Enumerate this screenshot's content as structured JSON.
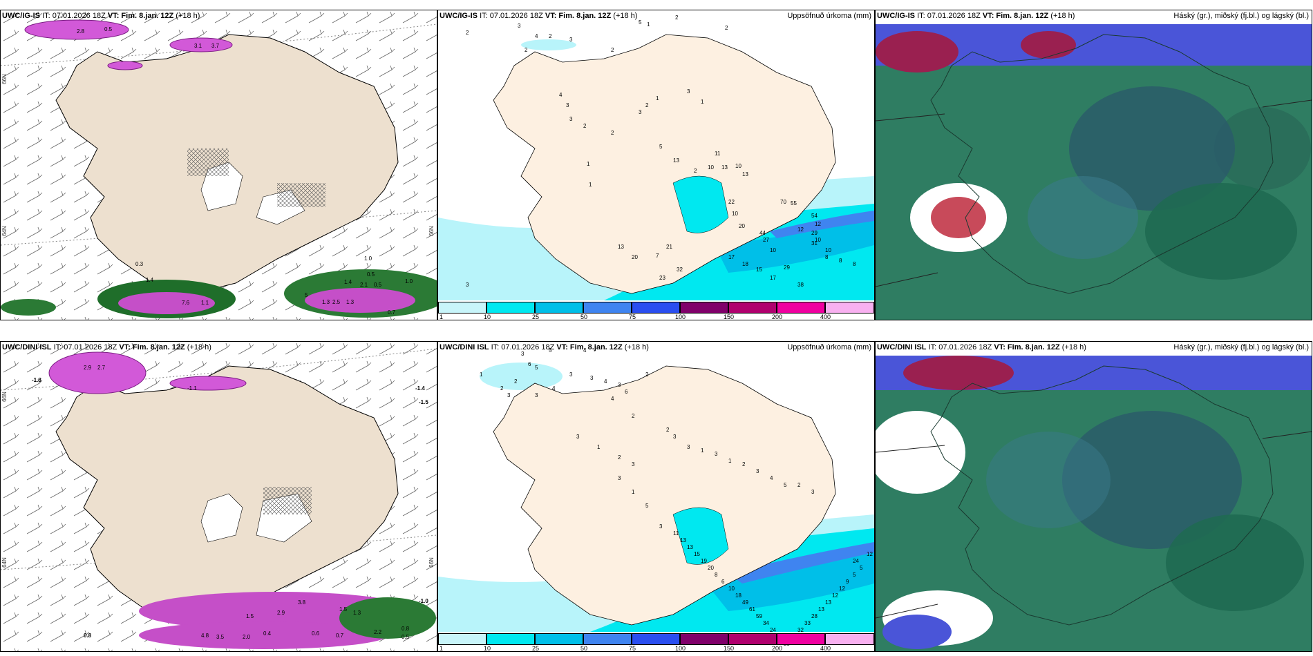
{
  "panels": {
    "top_left": {
      "model": "UWC/IG-IS",
      "it": "IT: 07.01.2026 18Z",
      "vt_label": "VT:",
      "vt": "Fim. 8.jan. 12Z",
      "lead": "(+18 h)",
      "right_title": ""
    },
    "top_mid": {
      "model": "UWC/IG-IS",
      "it": "IT: 07.01.2026 18Z",
      "vt_label": "VT:",
      "vt": "Fim. 8.jan. 12Z",
      "lead": "(+18 h)",
      "right_title": "Uppsöfnuð úrkoma (mm)"
    },
    "top_right": {
      "model": "UWC/IG-IS",
      "it": "IT: 07.01.2026 18Z",
      "vt_label": "VT:",
      "vt": "Fim. 8.jan. 12Z",
      "lead": "(+18 h)",
      "right_title": "Háský (gr.), miðský (fj.bl.) og lágský (bl.)"
    },
    "bot_left": {
      "model": "UWC/DINI ISL",
      "it": "IT: 07.01.2026 18Z",
      "vt_label": "VT:",
      "vt": "Fim. 8.jan. 12Z",
      "lead": "(+18 h)",
      "right_title": ""
    },
    "bot_mid": {
      "model": "UWC/DINI ISL",
      "it": "IT: 07.01.2026 18Z",
      "vt_label": "VT:",
      "vt": "Fim. 8.jan. 12Z",
      "lead": "(+18 h)",
      "right_title": "Uppsöfnuð úrkoma (mm)"
    },
    "bot_right": {
      "model": "UWC/DINI ISL",
      "it": "IT: 07.01.2026 18Z",
      "vt_label": "VT:",
      "vt": "Fim. 8.jan. 12Z",
      "lead": "(+18 h)",
      "right_title": "Háský (gr.), miðský (fj.bl.) og lágský (bl.)"
    }
  },
  "lat_labels": {
    "a": "66N",
    "b": "64N"
  },
  "precip_legend": {
    "labels": [
      "1",
      "10",
      "25",
      "50",
      "75",
      "100",
      "150",
      "200",
      "400"
    ],
    "colors": [
      "#c8f5fa",
      "#00e8f0",
      "#00bfe8",
      "#3f84f0",
      "#2a4ef0",
      "#2020b0",
      "#80006a",
      "#b0006e",
      "#f000a0",
      "#f8b0f0"
    ]
  },
  "precip_values_top": [
    "2",
    "3",
    "4",
    "2",
    "3",
    "5",
    "2",
    "1",
    "2",
    "2",
    "2",
    "4",
    "3",
    "3",
    "2",
    "1",
    "1",
    "1",
    "3",
    "1",
    "2",
    "3",
    "2",
    "5",
    "13",
    "2",
    "10",
    "13",
    "10",
    "11",
    "13",
    "22",
    "10",
    "20",
    "70",
    "55",
    "54",
    "29",
    "31",
    "44",
    "27",
    "10",
    "12",
    "10",
    "10",
    "8",
    "8",
    "8",
    "12",
    "13",
    "20",
    "7",
    "21",
    "23",
    "32",
    "17",
    "18",
    "15",
    "17",
    "29",
    "38",
    "3",
    "2"
  ],
  "precip_values_bot": [
    "3",
    "6",
    "5",
    "5",
    "4",
    "1",
    "2",
    "2",
    "3",
    "3",
    "4",
    "3",
    "3",
    "4",
    "3",
    "6",
    "4",
    "2",
    "2",
    "3",
    "1",
    "2",
    "3",
    "2",
    "3",
    "3",
    "1",
    "3",
    "1",
    "2",
    "3",
    "4",
    "5",
    "2",
    "3",
    "3",
    "1",
    "5",
    "3",
    "11",
    "13",
    "13",
    "15",
    "19",
    "20",
    "8",
    "6",
    "10",
    "18",
    "49",
    "61",
    "59",
    "34",
    "24",
    "24",
    "23",
    "29",
    "32",
    "33",
    "28",
    "13",
    "13",
    "12",
    "12",
    "9",
    "5",
    "5",
    "24",
    "12"
  ],
  "overlay_values_top_left": [
    "2.8",
    "0.5",
    "3.1",
    "3.7",
    "0.3",
    "1.4",
    "0.5",
    "7.6",
    "1.1",
    "5",
    "1.4",
    "2.1",
    "0.5",
    "1.0",
    "2.5",
    "1.3",
    "1.3",
    "0.7",
    "1.0"
  ],
  "overlay_values_bot_left": [
    "-1.8",
    "-1.1",
    "-1.4",
    "-1.5",
    "2.9",
    "2.7",
    "1.5",
    "2.9",
    "3.8",
    "1.5",
    "4.8",
    "3.5",
    "2.0",
    "0.4",
    "0.6",
    "0.7",
    "2.2",
    "0.8",
    "-1.0",
    "0.8",
    "0.5",
    "1.3"
  ]
}
